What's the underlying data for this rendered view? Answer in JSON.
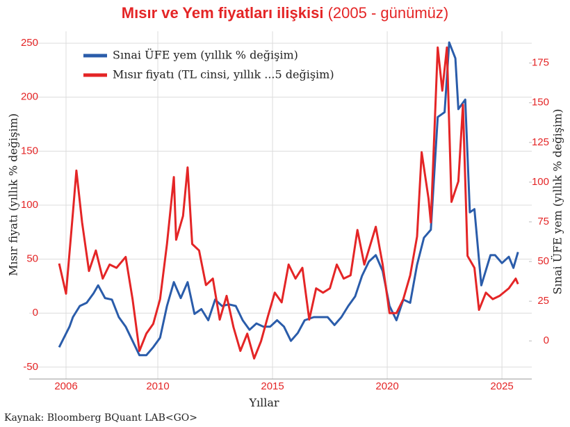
{
  "chart_data": {
    "type": "line",
    "title": "Mısır ve Yem fiyatları ilişkisi",
    "subtitle": "(2005 - günümüz)",
    "x_label": "Yıllar",
    "y_label": "Mısır fiyatı (yıllık % değişim)",
    "y2_label": "Sınai ÜFE yem (yıllık % değişim)",
    "source": "Kaynak: Bloomberg BQuant LAB<GO>",
    "xlim": [
      2005,
      2026.3
    ],
    "xticks": [
      2006,
      2010,
      2015,
      2020,
      2025
    ],
    "ylim": [
      -61,
      261
    ],
    "yticks": [
      -50,
      0,
      50,
      100,
      150,
      200,
      250
    ],
    "y2lim": [
      -24,
      195
    ],
    "y2ticks": [
      0,
      25,
      50,
      75,
      100,
      125,
      150,
      175
    ],
    "grid": true,
    "legend": "top-left",
    "series": [
      {
        "name": "Sınai ÜFE yem (yıllık % değişim)",
        "color": "#2a5caa",
        "axis": "y2",
        "x": [
          2005.7,
          2006.15,
          2006.3,
          2006.6,
          2006.9,
          2007.2,
          2007.4,
          2007.7,
          2008.0,
          2008.3,
          2008.6,
          2008.9,
          2009.2,
          2009.5,
          2009.8,
          2010.1,
          2010.4,
          2010.7,
          2011.0,
          2011.3,
          2011.6,
          2011.9,
          2012.2,
          2012.5,
          2012.8,
          2013.1,
          2013.4,
          2013.7,
          2014.0,
          2014.3,
          2014.6,
          2014.9,
          2015.2,
          2015.5,
          2015.8,
          2016.1,
          2016.4,
          2016.8,
          2017.1,
          2017.4,
          2017.7,
          2018.0,
          2018.3,
          2018.6,
          2018.9,
          2019.2,
          2019.5,
          2019.8,
          2020.1,
          2020.4,
          2020.7,
          2021.0,
          2021.3,
          2021.6,
          2021.9,
          2022.2,
          2022.5,
          2022.7,
          2022.97,
          2023.1,
          2023.4,
          2023.6,
          2023.8,
          2024.1,
          2024.5,
          2024.7,
          2025.0,
          2025.3,
          2025.5,
          2025.7
        ],
        "values": [
          -4,
          9,
          15,
          22,
          24,
          30,
          35,
          27,
          26,
          15,
          9,
          0,
          -9,
          -9,
          -4,
          2,
          22,
          37,
          27,
          37,
          17,
          20,
          13,
          26,
          22,
          23,
          22,
          13,
          7,
          11,
          9,
          9,
          13,
          9,
          0,
          5,
          13,
          15,
          15,
          15,
          10,
          15,
          22,
          28,
          41,
          50,
          54,
          44,
          22,
          13,
          26,
          24,
          48,
          65,
          70,
          141,
          144,
          188,
          178,
          146,
          152,
          81,
          83,
          35,
          54,
          54,
          49,
          53,
          46,
          56
        ]
      },
      {
        "name": "Mısır fiyatı (TL cinsi, yıllık ...5 değişim)",
        "color": "#e42526",
        "axis": "y",
        "x": [
          2005.7,
          2006.0,
          2006.3,
          2006.45,
          2006.7,
          2007.0,
          2007.3,
          2007.6,
          2007.9,
          2008.2,
          2008.6,
          2008.9,
          2009.2,
          2009.5,
          2009.8,
          2010.1,
          2010.4,
          2010.7,
          2010.8,
          2011.1,
          2011.3,
          2011.5,
          2011.8,
          2012.1,
          2012.4,
          2012.7,
          2013.0,
          2013.3,
          2013.6,
          2013.9,
          2014.2,
          2014.5,
          2014.8,
          2015.1,
          2015.4,
          2015.7,
          2016.0,
          2016.3,
          2016.6,
          2016.9,
          2017.2,
          2017.5,
          2017.8,
          2018.1,
          2018.4,
          2018.7,
          2019.0,
          2019.5,
          2019.8,
          2020.1,
          2020.4,
          2020.7,
          2021.0,
          2021.3,
          2021.5,
          2021.8,
          2021.9,
          2022.2,
          2022.4,
          2022.6,
          2022.8,
          2023.1,
          2023.3,
          2023.5,
          2023.8,
          2024.0,
          2024.3,
          2024.6,
          2024.9,
          2025.3,
          2025.6,
          2025.7
        ],
        "values": [
          46,
          18,
          93,
          132,
          84,
          39,
          58,
          32,
          45,
          42,
          52,
          13,
          -35,
          -19,
          -10,
          13,
          64,
          126,
          68,
          90,
          135,
          64,
          58,
          26,
          32,
          -6,
          16,
          -13,
          -35,
          -19,
          -42,
          -26,
          -3,
          19,
          10,
          45,
          32,
          42,
          -6,
          23,
          19,
          23,
          45,
          32,
          35,
          77,
          45,
          80,
          45,
          0,
          0,
          13,
          35,
          71,
          149,
          106,
          84,
          246,
          206,
          246,
          103,
          122,
          193,
          53,
          42,
          3,
          19,
          13,
          16,
          23,
          32,
          27
        ]
      }
    ]
  }
}
